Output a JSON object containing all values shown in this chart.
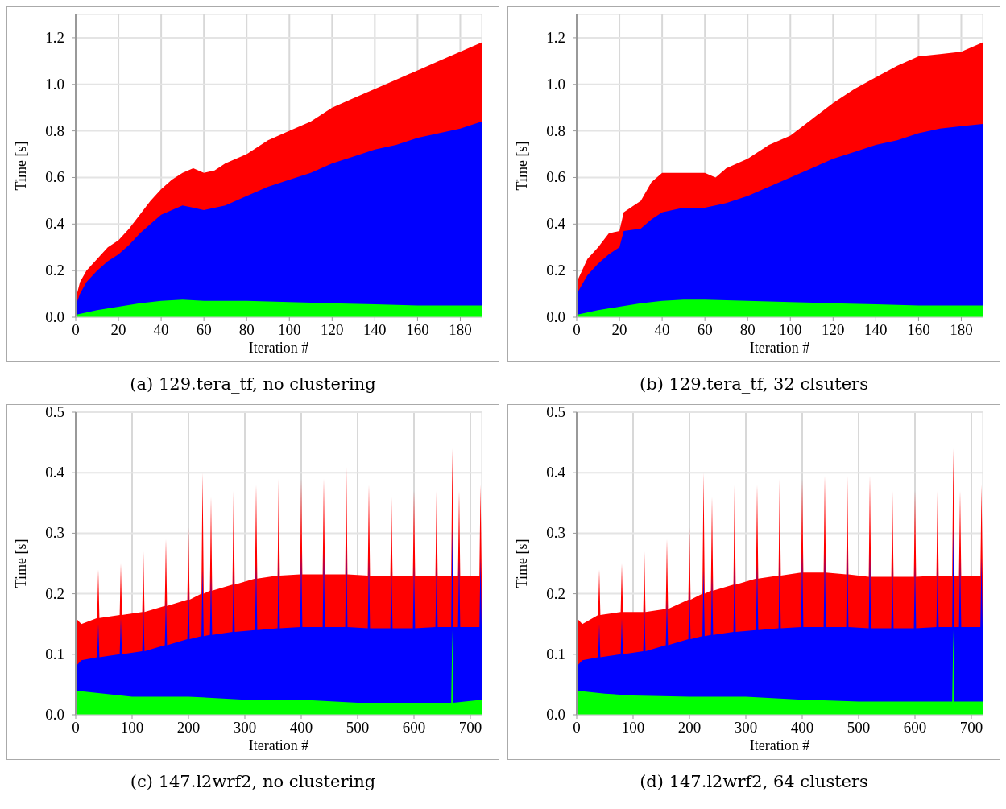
{
  "chart_data": [
    {
      "type": "area",
      "title": "(a) 129.tera_tf, no clustering",
      "xlabel": "Iteration #",
      "ylabel": "Time [s]",
      "grid": true,
      "xlim": [
        0,
        190
      ],
      "ylim": [
        0,
        1.3
      ],
      "xticks": [
        0,
        20,
        40,
        60,
        80,
        100,
        120,
        140,
        160,
        180
      ],
      "yticks": [
        {
          "value": 0,
          "label": "0.0"
        },
        {
          "value": 0.2,
          "label": "0.2"
        },
        {
          "value": 0.4,
          "label": "0.4"
        },
        {
          "value": 0.6,
          "label": "0.6"
        },
        {
          "value": 0.8,
          "label": "0.8"
        },
        {
          "value": 1,
          "label": "1.0"
        },
        {
          "value": 1.2,
          "label": "1.2"
        }
      ],
      "series": [
        {
          "color": "#ff0000",
          "x": [
            0,
            2,
            5,
            10,
            15,
            20,
            25,
            30,
            35,
            40,
            45,
            50,
            55,
            60,
            65,
            70,
            80,
            90,
            100,
            110,
            120,
            130,
            140,
            150,
            160,
            170,
            180,
            190
          ],
          "values": [
            0.08,
            0.15,
            0.2,
            0.25,
            0.3,
            0.33,
            0.38,
            0.44,
            0.5,
            0.55,
            0.59,
            0.62,
            0.64,
            0.62,
            0.63,
            0.66,
            0.7,
            0.76,
            0.8,
            0.84,
            0.9,
            0.94,
            0.98,
            1.02,
            1.06,
            1.1,
            1.14,
            1.18
          ]
        },
        {
          "color": "#0000ff",
          "x": [
            0,
            2,
            5,
            10,
            15,
            20,
            25,
            30,
            35,
            40,
            45,
            50,
            55,
            60,
            70,
            80,
            90,
            100,
            110,
            120,
            130,
            140,
            150,
            160,
            170,
            180,
            190
          ],
          "values": [
            0.05,
            0.1,
            0.15,
            0.2,
            0.24,
            0.27,
            0.31,
            0.36,
            0.4,
            0.44,
            0.46,
            0.48,
            0.47,
            0.46,
            0.48,
            0.52,
            0.56,
            0.59,
            0.62,
            0.66,
            0.69,
            0.72,
            0.74,
            0.77,
            0.79,
            0.81,
            0.84
          ]
        },
        {
          "color": "#00ff00",
          "x": [
            0,
            10,
            20,
            30,
            40,
            50,
            60,
            80,
            100,
            120,
            140,
            160,
            180,
            190
          ],
          "values": [
            0.01,
            0.03,
            0.045,
            0.06,
            0.07,
            0.075,
            0.07,
            0.07,
            0.065,
            0.06,
            0.055,
            0.05,
            0.05,
            0.05
          ]
        }
      ]
    },
    {
      "type": "area",
      "title": "(b) 129.tera_tf, 32 clsuters",
      "xlabel": "Iteration #",
      "ylabel": "Time [s]",
      "grid": true,
      "xlim": [
        0,
        190
      ],
      "ylim": [
        0,
        1.3
      ],
      "xticks": [
        0,
        20,
        40,
        60,
        80,
        100,
        120,
        140,
        160,
        180
      ],
      "yticks": [
        {
          "value": 0,
          "label": "0.0"
        },
        {
          "value": 0.2,
          "label": "0.2"
        },
        {
          "value": 0.4,
          "label": "0.4"
        },
        {
          "value": 0.6,
          "label": "0.6"
        },
        {
          "value": 0.8,
          "label": "0.8"
        },
        {
          "value": 1,
          "label": "1.0"
        },
        {
          "value": 1.2,
          "label": "1.2"
        }
      ],
      "series": [
        {
          "color": "#ff0000",
          "x": [
            0,
            5,
            10,
            15,
            20,
            22,
            30,
            35,
            40,
            50,
            60,
            65,
            70,
            80,
            90,
            100,
            110,
            120,
            130,
            140,
            150,
            160,
            170,
            180,
            190
          ],
          "values": [
            0.15,
            0.25,
            0.3,
            0.36,
            0.37,
            0.45,
            0.5,
            0.58,
            0.62,
            0.62,
            0.62,
            0.6,
            0.64,
            0.68,
            0.74,
            0.78,
            0.85,
            0.92,
            0.98,
            1.03,
            1.08,
            1.12,
            1.13,
            1.14,
            1.18
          ]
        },
        {
          "color": "#0000ff",
          "x": [
            0,
            5,
            10,
            15,
            20,
            22,
            30,
            35,
            40,
            50,
            60,
            70,
            80,
            90,
            100,
            110,
            120,
            130,
            140,
            150,
            160,
            170,
            180,
            190
          ],
          "values": [
            0.1,
            0.18,
            0.23,
            0.27,
            0.3,
            0.37,
            0.38,
            0.42,
            0.45,
            0.47,
            0.47,
            0.49,
            0.52,
            0.56,
            0.6,
            0.64,
            0.68,
            0.71,
            0.74,
            0.76,
            0.79,
            0.81,
            0.82,
            0.83
          ]
        },
        {
          "color": "#00ff00",
          "x": [
            0,
            10,
            20,
            30,
            40,
            50,
            60,
            80,
            100,
            120,
            140,
            160,
            180,
            190
          ],
          "values": [
            0.01,
            0.03,
            0.045,
            0.06,
            0.07,
            0.075,
            0.075,
            0.07,
            0.065,
            0.06,
            0.055,
            0.05,
            0.05,
            0.05
          ]
        }
      ]
    },
    {
      "type": "area",
      "title": "(c) 147.l2wrf2, no clustering",
      "xlabel": "Iteration #",
      "ylabel": "Time [s]",
      "grid": true,
      "xlim": [
        0,
        720
      ],
      "ylim": [
        0,
        0.5
      ],
      "xticks": [
        0,
        100,
        200,
        300,
        400,
        500,
        600,
        700
      ],
      "yticks": [
        {
          "value": 0,
          "label": "0.0"
        },
        {
          "value": 0.1,
          "label": "0.1"
        },
        {
          "value": 0.2,
          "label": "0.2"
        },
        {
          "value": 0.3,
          "label": "0.3"
        },
        {
          "value": 0.4,
          "label": "0.4"
        },
        {
          "value": 0.5,
          "label": "0.5"
        }
      ],
      "x": [
        0,
        10,
        38,
        40,
        42,
        78,
        80,
        82,
        118,
        120,
        122,
        158,
        160,
        162,
        198,
        200,
        202,
        223,
        225,
        227,
        238,
        240,
        242,
        278,
        280,
        282,
        318,
        320,
        322,
        358,
        360,
        362,
        398,
        400,
        402,
        438,
        440,
        442,
        478,
        480,
        482,
        518,
        520,
        522,
        558,
        560,
        562,
        598,
        600,
        602,
        638,
        640,
        642,
        666,
        668,
        670,
        678,
        680,
        682,
        716,
        718,
        720
      ],
      "series": [
        {
          "color": "#ff0000",
          "values": [
            0.16,
            0.15,
            0.16,
            0.24,
            0.16,
            0.165,
            0.25,
            0.165,
            0.17,
            0.27,
            0.17,
            0.18,
            0.29,
            0.18,
            0.19,
            0.31,
            0.19,
            0.2,
            0.4,
            0.2,
            0.205,
            0.36,
            0.205,
            0.215,
            0.37,
            0.215,
            0.225,
            0.38,
            0.225,
            0.23,
            0.39,
            0.23,
            0.232,
            0.39,
            0.232,
            0.232,
            0.39,
            0.232,
            0.232,
            0.41,
            0.232,
            0.23,
            0.38,
            0.23,
            0.23,
            0.36,
            0.23,
            0.23,
            0.37,
            0.23,
            0.23,
            0.37,
            0.23,
            0.23,
            0.44,
            0.23,
            0.23,
            0.37,
            0.23,
            0.23,
            0.38,
            0.23
          ]
        },
        {
          "color": "#0000ff",
          "values": [
            0.08,
            0.09,
            0.095,
            0.15,
            0.095,
            0.1,
            0.16,
            0.1,
            0.105,
            0.18,
            0.105,
            0.115,
            0.19,
            0.115,
            0.125,
            0.21,
            0.125,
            0.13,
            0.24,
            0.13,
            0.132,
            0.23,
            0.132,
            0.137,
            0.24,
            0.137,
            0.14,
            0.25,
            0.14,
            0.143,
            0.26,
            0.143,
            0.145,
            0.27,
            0.145,
            0.145,
            0.27,
            0.145,
            0.145,
            0.28,
            0.145,
            0.143,
            0.26,
            0.143,
            0.143,
            0.24,
            0.143,
            0.143,
            0.25,
            0.143,
            0.145,
            0.25,
            0.145,
            0.145,
            0.31,
            0.145,
            0.145,
            0.26,
            0.145,
            0.145,
            0.26,
            0.145
          ]
        },
        {
          "color": "#00ff00",
          "x": [
            0,
            50,
            100,
            200,
            300,
            400,
            500,
            600,
            666,
            668,
            670,
            720
          ],
          "values": [
            0.04,
            0.035,
            0.03,
            0.03,
            0.025,
            0.025,
            0.02,
            0.02,
            0.02,
            0.14,
            0.02,
            0.025
          ]
        }
      ]
    },
    {
      "type": "area",
      "title": "(d) 147.l2wrf2, 64 clusters",
      "xlabel": "Iteration #",
      "ylabel": "Time [s]",
      "grid": true,
      "xlim": [
        0,
        720
      ],
      "ylim": [
        0,
        0.5
      ],
      "xticks": [
        0,
        100,
        200,
        300,
        400,
        500,
        600,
        700
      ],
      "yticks": [
        {
          "value": 0,
          "label": "0.0"
        },
        {
          "value": 0.1,
          "label": "0.1"
        },
        {
          "value": 0.2,
          "label": "0.2"
        },
        {
          "value": 0.3,
          "label": "0.3"
        },
        {
          "value": 0.4,
          "label": "0.4"
        },
        {
          "value": 0.5,
          "label": "0.5"
        }
      ],
      "x": [
        0,
        10,
        38,
        40,
        42,
        78,
        80,
        82,
        118,
        120,
        122,
        158,
        160,
        162,
        198,
        200,
        202,
        223,
        225,
        227,
        238,
        240,
        242,
        278,
        280,
        282,
        318,
        320,
        322,
        358,
        360,
        362,
        398,
        400,
        402,
        438,
        440,
        442,
        478,
        480,
        482,
        518,
        520,
        522,
        558,
        560,
        562,
        598,
        600,
        602,
        638,
        640,
        642,
        666,
        668,
        670,
        678,
        680,
        682,
        716,
        718,
        720
      ],
      "series": [
        {
          "color": "#ff0000",
          "values": [
            0.16,
            0.15,
            0.165,
            0.24,
            0.165,
            0.17,
            0.25,
            0.17,
            0.17,
            0.27,
            0.17,
            0.175,
            0.29,
            0.175,
            0.19,
            0.31,
            0.19,
            0.2,
            0.4,
            0.2,
            0.205,
            0.36,
            0.205,
            0.215,
            0.38,
            0.215,
            0.225,
            0.38,
            0.225,
            0.23,
            0.39,
            0.23,
            0.235,
            0.39,
            0.235,
            0.235,
            0.395,
            0.235,
            0.232,
            0.395,
            0.232,
            0.228,
            0.395,
            0.228,
            0.228,
            0.37,
            0.228,
            0.228,
            0.37,
            0.228,
            0.23,
            0.37,
            0.23,
            0.23,
            0.44,
            0.23,
            0.23,
            0.37,
            0.23,
            0.23,
            0.38,
            0.23
          ]
        },
        {
          "color": "#0000ff",
          "values": [
            0.08,
            0.09,
            0.095,
            0.15,
            0.095,
            0.1,
            0.16,
            0.1,
            0.105,
            0.18,
            0.105,
            0.115,
            0.19,
            0.115,
            0.125,
            0.21,
            0.125,
            0.13,
            0.24,
            0.13,
            0.132,
            0.23,
            0.132,
            0.137,
            0.25,
            0.137,
            0.14,
            0.25,
            0.14,
            0.143,
            0.26,
            0.143,
            0.145,
            0.27,
            0.145,
            0.145,
            0.27,
            0.145,
            0.145,
            0.28,
            0.145,
            0.143,
            0.27,
            0.143,
            0.143,
            0.25,
            0.143,
            0.143,
            0.25,
            0.143,
            0.145,
            0.25,
            0.145,
            0.145,
            0.31,
            0.145,
            0.145,
            0.26,
            0.145,
            0.145,
            0.26,
            0.145
          ]
        },
        {
          "color": "#00ff00",
          "x": [
            0,
            50,
            100,
            200,
            300,
            400,
            500,
            600,
            666,
            668,
            670,
            720
          ],
          "values": [
            0.04,
            0.035,
            0.032,
            0.03,
            0.03,
            0.025,
            0.022,
            0.022,
            0.022,
            0.14,
            0.022,
            0.022
          ]
        }
      ]
    }
  ]
}
